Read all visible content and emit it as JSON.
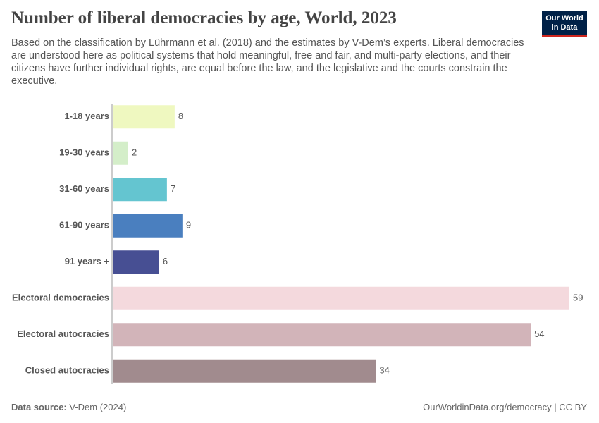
{
  "chart_data": {
    "type": "bar",
    "orientation": "horizontal",
    "title": "Number of liberal democracies by age, World, 2023",
    "subtitle": "Based on the classification by Lührmann et al. (2018) and the estimates by V-Dem’s experts. Liberal democracies are understood here as political systems that hold meaningful, free and fair, and multi-party elections, and their citizens have further individual rights, are equal before the law, and the legislative and the courts constrain the executive.",
    "categories": [
      "1-18 years",
      "19-30 years",
      "31-60 years",
      "61-90 years",
      "91 years +",
      "Electoral democracies",
      "Electoral autocracies",
      "Closed autocracies"
    ],
    "values": [
      8,
      2,
      7,
      9,
      6,
      59,
      54,
      34
    ],
    "colors": [
      "#eff8c0",
      "#d4eec9",
      "#64c5d0",
      "#4a7fbf",
      "#474f93",
      "#f4d9dd",
      "#d2b4b9",
      "#a18b8e"
    ],
    "source_label": "Data source:",
    "source": "V-Dem (2024)",
    "url": "OurWorldinData.org/democracy | CC BY",
    "logo": [
      "Our World",
      "in Data"
    ]
  }
}
